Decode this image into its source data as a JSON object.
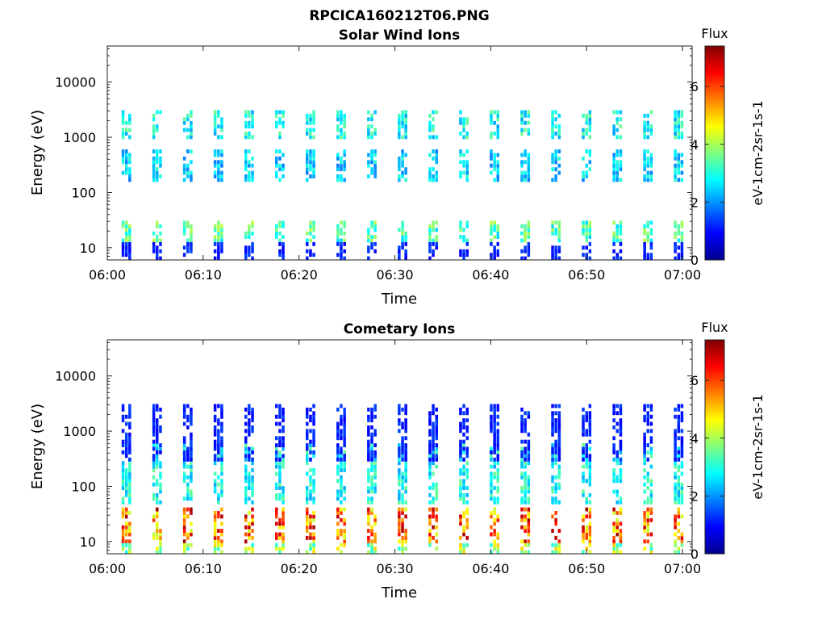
{
  "figure": {
    "title": "RPCICA160212T06.PNG"
  },
  "chart_data": [
    {
      "type": "heatmap",
      "title": "Solar Wind Ions",
      "xlabel": "Time",
      "ylabel": "Energy (eV)",
      "x_ticks": [
        "06:00",
        "06:10",
        "06:20",
        "06:30",
        "06:40",
        "06:50",
        "07:00"
      ],
      "y_scale": "log",
      "y_ticks": [
        "10",
        "100",
        "1000",
        "10000"
      ],
      "ylim": [
        6,
        45000
      ],
      "x_range": [
        "06:00",
        "07:01"
      ],
      "colorbar": {
        "title": "Flux",
        "label": "eV-1cm-2sr-1s-1",
        "ticks": [
          "0",
          "2",
          "4",
          "6"
        ],
        "range": [
          0,
          7.4
        ],
        "colormap": "jet"
      },
      "scan_interval_min": 3.2,
      "scan_features": [
        {
          "energy_band_eV": [
            12,
            30
          ],
          "flux": 3.5
        },
        {
          "energy_band_eV": [
            6,
            12
          ],
          "flux": 1.2
        },
        {
          "energy_band_eV": [
            150,
            600
          ],
          "flux": 2.6
        },
        {
          "energy_band_eV": [
            1000,
            3000
          ],
          "flux": 3.0
        }
      ],
      "grid": false,
      "legend": "colorbar-right"
    },
    {
      "type": "heatmap",
      "title": "Cometary Ions",
      "xlabel": "Time",
      "ylabel": "Energy (eV)",
      "x_ticks": [
        "06:00",
        "06:10",
        "06:20",
        "06:30",
        "06:40",
        "06:50",
        "07:00"
      ],
      "y_scale": "log",
      "y_ticks": [
        "10",
        "100",
        "1000",
        "10000"
      ],
      "ylim": [
        6,
        45000
      ],
      "x_range": [
        "06:00",
        "07:01"
      ],
      "colorbar": {
        "title": "Flux",
        "label": "eV-1cm-2sr-1s-1",
        "ticks": [
          "0",
          "2",
          "4",
          "6"
        ],
        "range": [
          0,
          7.4
        ],
        "colormap": "jet"
      },
      "scan_interval_min": 3.2,
      "scan_features": [
        {
          "energy_band_eV": [
            10,
            40
          ],
          "flux": 6.0
        },
        {
          "energy_band_eV": [
            6,
            10
          ],
          "flux": 4.2
        },
        {
          "energy_band_eV": [
            50,
            600
          ],
          "flux": 3.0
        },
        {
          "energy_band_eV": [
            300,
            3000
          ],
          "flux": 1.2
        }
      ],
      "grid": false,
      "legend": "colorbar-right"
    }
  ]
}
